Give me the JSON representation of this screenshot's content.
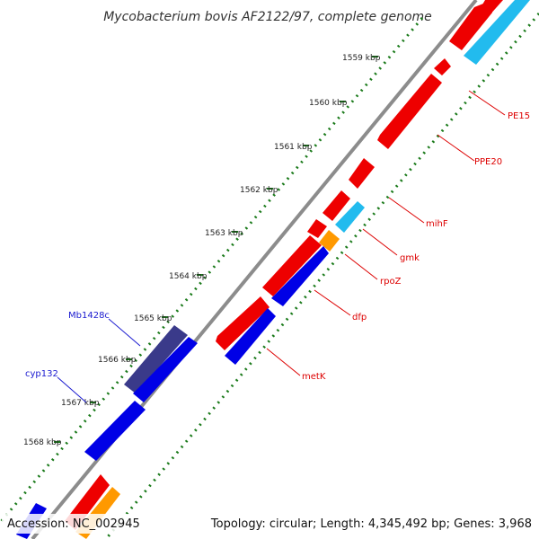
{
  "title": "Mycobacterium bovis AF2122/97, complete genome",
  "footer": {
    "accession": "Accession: NC_002945",
    "topology": "Topology: circular; Length: 4,345,492 bp; Genes: 3,968"
  },
  "ticks": [
    "1559 kbp",
    "1560 kbp",
    "1561 kbp",
    "1562 kbp",
    "1563 kbp",
    "1564 kbp",
    "1565 kbp",
    "1566 kbp",
    "1567 kbp",
    "1568 kbp"
  ],
  "genes": {
    "pe15": "PE15",
    "ppe20": "PPE20",
    "mihf": "mihF",
    "gmk": "gmk",
    "rpoz": "rpoZ",
    "dfp": "dfp",
    "metk": "metK",
    "mb1428c": "Mb1428c",
    "cyp132": "cyp132"
  },
  "colors": {
    "red": "#ee0000",
    "blue": "#0000e6",
    "cyan": "#22bbee",
    "orange": "#ff9900",
    "navy": "#3a3a8a",
    "backbone": "#8c8c8c",
    "dots": "#1a7a1a"
  }
}
